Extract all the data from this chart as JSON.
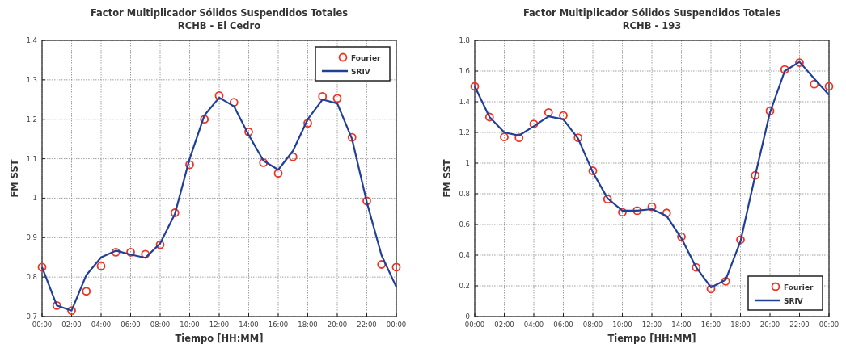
{
  "chart_data": [
    {
      "type": "line",
      "title": "Factor Multiplicador Sólidos Suspendidos Totales",
      "subtitle": "RCHB - El Cedro",
      "xlabel": "Tiempo [HH:MM]",
      "ylabel": "FM SST",
      "x": [
        0,
        1,
        2,
        3,
        4,
        5,
        6,
        7,
        8,
        9,
        10,
        11,
        12,
        13,
        14,
        15,
        16,
        17,
        18,
        19,
        20,
        21,
        22,
        23,
        24
      ],
      "series": [
        {
          "name": "Fourier",
          "type": "scatter",
          "marker": "circle",
          "color": "#ee3322",
          "values": [
            0.825,
            0.728,
            0.715,
            0.764,
            0.828,
            0.863,
            0.863,
            0.858,
            0.882,
            0.963,
            1.085,
            1.2,
            1.26,
            1.243,
            1.168,
            1.09,
            1.063,
            1.105,
            1.19,
            1.258,
            1.253,
            1.154,
            0.993,
            0.832,
            0.825
          ]
        },
        {
          "name": "SRIV",
          "type": "line",
          "color": "#1f3f99",
          "values": [
            0.825,
            0.728,
            0.715,
            0.805,
            0.85,
            0.867,
            0.857,
            0.849,
            0.885,
            0.96,
            1.1,
            1.21,
            1.255,
            1.233,
            1.16,
            1.095,
            1.072,
            1.12,
            1.2,
            1.25,
            1.24,
            1.15,
            0.99,
            0.855,
            0.775
          ]
        }
      ],
      "xlim": [
        0,
        24
      ],
      "xticks": [
        {
          "value": 0,
          "label": "00:00"
        },
        {
          "value": 2,
          "label": "02:00"
        },
        {
          "value": 4,
          "label": "04:00"
        },
        {
          "value": 6,
          "label": "06:00"
        },
        {
          "value": 8,
          "label": "08:00"
        },
        {
          "value": 10,
          "label": "10:00"
        },
        {
          "value": 12,
          "label": "12:00"
        },
        {
          "value": 14,
          "label": "14:00"
        },
        {
          "value": 16,
          "label": "16:00"
        },
        {
          "value": 18,
          "label": "18:00"
        },
        {
          "value": 20,
          "label": "20:00"
        },
        {
          "value": 22,
          "label": "22:00"
        },
        {
          "value": 24,
          "label": "00:00"
        }
      ],
      "ylim": [
        0.7,
        1.4
      ],
      "yticks": [
        0.7,
        0.8,
        0.9,
        1,
        1.1,
        1.2,
        1.3,
        1.4
      ],
      "grid": true,
      "legend": "top right"
    },
    {
      "type": "line",
      "title": "Factor Multiplicador Sólidos Suspendidos Totales",
      "subtitle": "RCHB - 193",
      "xlabel": "Tiempo [HH:MM]",
      "ylabel": "FM SST",
      "x": [
        0,
        1,
        2,
        3,
        4,
        5,
        6,
        7,
        8,
        9,
        10,
        11,
        12,
        13,
        14,
        15,
        16,
        17,
        18,
        19,
        20,
        21,
        22,
        23,
        24
      ],
      "series": [
        {
          "name": "Fourier",
          "type": "scatter",
          "marker": "circle",
          "color": "#ee3322",
          "values": [
            1.5,
            1.3,
            1.17,
            1.165,
            1.255,
            1.33,
            1.31,
            1.165,
            0.95,
            0.765,
            0.68,
            0.69,
            0.715,
            0.675,
            0.52,
            0.32,
            0.18,
            0.23,
            0.5,
            0.92,
            1.34,
            1.61,
            1.655,
            1.515,
            1.5
          ]
        },
        {
          "name": "SRIV",
          "type": "line",
          "color": "#1f3f99",
          "values": [
            1.5,
            1.3,
            1.2,
            1.18,
            1.24,
            1.305,
            1.285,
            1.16,
            0.94,
            0.77,
            0.69,
            0.69,
            0.7,
            0.655,
            0.51,
            0.32,
            0.19,
            0.24,
            0.49,
            0.92,
            1.33,
            1.6,
            1.66,
            1.55,
            1.445
          ]
        }
      ],
      "xlim": [
        0,
        24
      ],
      "xticks": [
        {
          "value": 0,
          "label": "00:00"
        },
        {
          "value": 2,
          "label": "02:00"
        },
        {
          "value": 4,
          "label": "04:00"
        },
        {
          "value": 6,
          "label": "06:00"
        },
        {
          "value": 8,
          "label": "08:00"
        },
        {
          "value": 10,
          "label": "10:00"
        },
        {
          "value": 12,
          "label": "12:00"
        },
        {
          "value": 14,
          "label": "14:00"
        },
        {
          "value": 16,
          "label": "16:00"
        },
        {
          "value": 18,
          "label": "18:00"
        },
        {
          "value": 20,
          "label": "20:00"
        },
        {
          "value": 22,
          "label": "22:00"
        },
        {
          "value": 24,
          "label": "00:00"
        }
      ],
      "ylim": [
        0,
        1.8
      ],
      "yticks": [
        0,
        0.2,
        0.4,
        0.6,
        0.8,
        1,
        1.2,
        1.4,
        1.6,
        1.8
      ],
      "grid": true,
      "legend": "bottom right"
    }
  ]
}
